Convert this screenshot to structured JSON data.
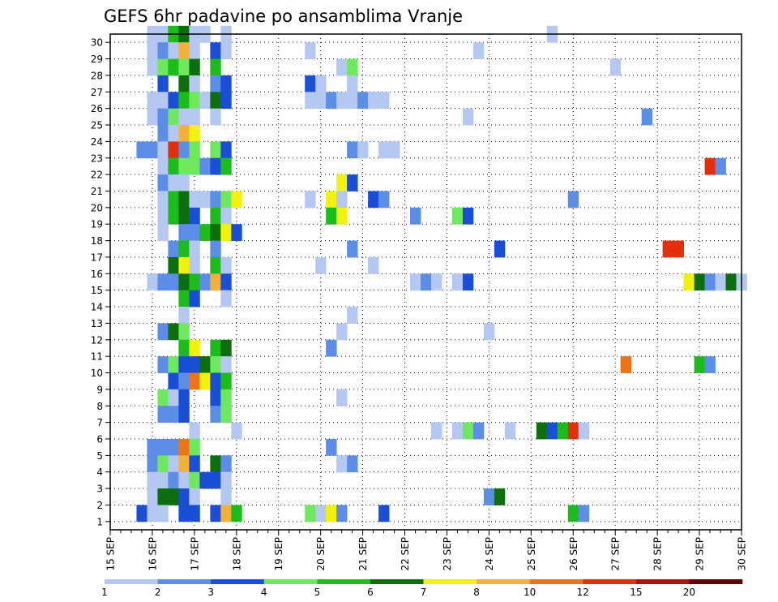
{
  "chart_data": {
    "type": "heatmap",
    "title": "GEFS 6hr padavine po ansamblima Vranje",
    "x_tick_labels": [
      "15 SEP",
      "16 SEP",
      "17 SEP",
      "18 SEP",
      "19 SEP",
      "20 SEP",
      "21 SEP",
      "22 SEP",
      "23 SEP",
      "24 SEP",
      "25 SEP",
      "26 SEP",
      "27 SEP",
      "28 SEP",
      "29 SEP",
      "30 SEP"
    ],
    "y_tick_labels": [
      "1",
      "2",
      "3",
      "4",
      "5",
      "6",
      "7",
      "8",
      "9",
      "10",
      "11",
      "12",
      "13",
      "14",
      "15",
      "16",
      "17",
      "18",
      "19",
      "20",
      "21",
      "22",
      "23",
      "24",
      "25",
      "26",
      "27",
      "28",
      "29",
      "30"
    ],
    "x_range_steps": [
      0,
      60
    ],
    "y_range": [
      0,
      30
    ],
    "grid": true,
    "colorbar": {
      "placement": "bottom",
      "labels": [
        "1",
        "2",
        "3",
        "4",
        "5",
        "6",
        "7",
        "8",
        "10",
        "12",
        "15",
        "20"
      ],
      "colors": [
        "#b5c8f2",
        "#5c8ee8",
        "#1a4ed6",
        "#6ee85c",
        "#1cbc1c",
        "#0c6e0c",
        "#f2f20c",
        "#f2b23a",
        "#ee7418",
        "#e2300c",
        "#b2120c",
        "#5c0606"
      ]
    },
    "cells": [
      [
        4,
        30,
        0
      ],
      [
        5,
        30,
        0
      ],
      [
        6,
        30,
        4
      ],
      [
        7,
        30,
        5
      ],
      [
        8,
        30,
        0
      ],
      [
        9,
        30,
        0
      ],
      [
        11,
        30,
        0
      ],
      [
        42,
        30,
        0
      ],
      [
        4,
        29,
        0
      ],
      [
        5,
        29,
        1
      ],
      [
        6,
        29,
        0
      ],
      [
        7,
        29,
        7
      ],
      [
        8,
        29,
        0
      ],
      [
        10,
        29,
        2
      ],
      [
        11,
        29,
        0
      ],
      [
        19,
        29,
        0
      ],
      [
        35,
        29,
        0
      ],
      [
        4,
        28,
        0
      ],
      [
        5,
        28,
        3
      ],
      [
        6,
        28,
        4
      ],
      [
        7,
        28,
        3
      ],
      [
        8,
        28,
        5
      ],
      [
        10,
        28,
        4
      ],
      [
        22,
        28,
        0
      ],
      [
        23,
        28,
        3
      ],
      [
        48,
        28,
        0
      ],
      [
        5,
        27,
        2
      ],
      [
        7,
        27,
        5
      ],
      [
        8,
        27,
        0
      ],
      [
        10,
        27,
        1
      ],
      [
        11,
        27,
        2
      ],
      [
        19,
        27,
        2
      ],
      [
        20,
        27,
        0
      ],
      [
        23,
        27,
        0
      ],
      [
        4,
        26,
        0
      ],
      [
        5,
        26,
        0
      ],
      [
        6,
        26,
        2
      ],
      [
        7,
        26,
        4
      ],
      [
        8,
        26,
        3
      ],
      [
        9,
        26,
        0
      ],
      [
        10,
        26,
        5
      ],
      [
        11,
        26,
        2
      ],
      [
        19,
        26,
        0
      ],
      [
        20,
        26,
        0
      ],
      [
        21,
        26,
        1
      ],
      [
        22,
        26,
        0
      ],
      [
        23,
        26,
        0
      ],
      [
        24,
        26,
        1
      ],
      [
        25,
        26,
        0
      ],
      [
        26,
        26,
        0
      ],
      [
        4,
        25,
        0
      ],
      [
        5,
        25,
        1
      ],
      [
        6,
        25,
        3
      ],
      [
        7,
        25,
        0
      ],
      [
        8,
        25,
        0
      ],
      [
        10,
        25,
        0
      ],
      [
        34,
        25,
        0
      ],
      [
        51,
        25,
        1
      ],
      [
        5,
        24,
        1
      ],
      [
        6,
        24,
        0
      ],
      [
        7,
        24,
        7
      ],
      [
        8,
        24,
        6
      ],
      [
        3,
        23,
        1
      ],
      [
        4,
        23,
        1
      ],
      [
        5,
        23,
        0
      ],
      [
        6,
        23,
        9
      ],
      [
        7,
        23,
        1
      ],
      [
        8,
        23,
        3
      ],
      [
        10,
        23,
        3
      ],
      [
        11,
        23,
        2
      ],
      [
        23,
        23,
        1
      ],
      [
        24,
        23,
        0
      ],
      [
        26,
        23,
        0
      ],
      [
        27,
        23,
        0
      ],
      [
        5,
        22,
        0
      ],
      [
        6,
        22,
        4
      ],
      [
        7,
        22,
        3
      ],
      [
        8,
        22,
        3
      ],
      [
        9,
        22,
        1
      ],
      [
        10,
        22,
        2
      ],
      [
        11,
        22,
        4
      ],
      [
        57,
        22,
        9
      ],
      [
        58,
        22,
        1
      ],
      [
        5,
        21,
        1
      ],
      [
        6,
        21,
        0
      ],
      [
        7,
        21,
        0
      ],
      [
        22,
        21,
        6
      ],
      [
        23,
        21,
        2
      ],
      [
        5,
        20,
        0
      ],
      [
        6,
        20,
        4
      ],
      [
        7,
        20,
        5
      ],
      [
        8,
        20,
        0
      ],
      [
        9,
        20,
        0
      ],
      [
        10,
        20,
        1
      ],
      [
        11,
        20,
        3
      ],
      [
        12,
        20,
        6
      ],
      [
        19,
        20,
        0
      ],
      [
        21,
        20,
        6
      ],
      [
        22,
        20,
        0
      ],
      [
        25,
        20,
        2
      ],
      [
        26,
        20,
        1
      ],
      [
        44,
        20,
        1
      ],
      [
        5,
        19,
        0
      ],
      [
        6,
        19,
        4
      ],
      [
        7,
        19,
        5
      ],
      [
        8,
        19,
        2
      ],
      [
        10,
        19,
        4
      ],
      [
        11,
        19,
        0
      ],
      [
        21,
        19,
        4
      ],
      [
        22,
        19,
        6
      ],
      [
        29,
        19,
        1
      ],
      [
        33,
        19,
        3
      ],
      [
        34,
        19,
        2
      ],
      [
        5,
        18,
        0
      ],
      [
        7,
        18,
        1
      ],
      [
        8,
        18,
        1
      ],
      [
        9,
        18,
        4
      ],
      [
        10,
        18,
        5
      ],
      [
        11,
        18,
        6
      ],
      [
        12,
        18,
        2
      ],
      [
        6,
        17,
        1
      ],
      [
        7,
        17,
        4
      ],
      [
        8,
        17,
        0
      ],
      [
        10,
        17,
        1
      ],
      [
        23,
        17,
        1
      ],
      [
        37,
        17,
        2
      ],
      [
        53,
        17,
        9
      ],
      [
        54,
        17,
        9
      ],
      [
        6,
        16,
        5
      ],
      [
        7,
        16,
        6
      ],
      [
        8,
        16,
        0
      ],
      [
        10,
        16,
        4
      ],
      [
        11,
        16,
        0
      ],
      [
        20,
        16,
        0
      ],
      [
        25,
        16,
        0
      ],
      [
        4,
        15,
        0
      ],
      [
        5,
        15,
        1
      ],
      [
        6,
        15,
        1
      ],
      [
        7,
        15,
        5
      ],
      [
        8,
        15,
        4
      ],
      [
        9,
        15,
        1
      ],
      [
        10,
        15,
        7
      ],
      [
        11,
        15,
        2
      ],
      [
        29,
        15,
        0
      ],
      [
        30,
        15,
        1
      ],
      [
        31,
        15,
        0
      ],
      [
        33,
        15,
        0
      ],
      [
        34,
        15,
        2
      ],
      [
        55,
        15,
        6
      ],
      [
        56,
        15,
        5
      ],
      [
        57,
        15,
        1
      ],
      [
        58,
        15,
        0
      ],
      [
        59,
        15,
        5
      ],
      [
        60,
        15,
        0
      ],
      [
        7,
        14,
        4
      ],
      [
        8,
        14,
        2
      ],
      [
        11,
        14,
        0
      ],
      [
        7,
        13,
        0
      ],
      [
        23,
        13,
        0
      ],
      [
        5,
        12,
        1
      ],
      [
        6,
        12,
        5
      ],
      [
        7,
        12,
        3
      ],
      [
        22,
        12,
        0
      ],
      [
        36,
        12,
        0
      ],
      [
        7,
        11,
        4
      ],
      [
        8,
        11,
        6
      ],
      [
        10,
        11,
        4
      ],
      [
        11,
        11,
        5
      ],
      [
        21,
        11,
        1
      ],
      [
        5,
        10,
        1
      ],
      [
        6,
        10,
        3
      ],
      [
        7,
        10,
        2
      ],
      [
        8,
        10,
        2
      ],
      [
        9,
        10,
        5
      ],
      [
        10,
        10,
        3
      ],
      [
        11,
        10,
        0
      ],
      [
        49,
        10,
        8
      ],
      [
        56,
        10,
        4
      ],
      [
        57,
        10,
        1
      ],
      [
        6,
        9,
        2
      ],
      [
        7,
        9,
        1
      ],
      [
        8,
        9,
        8
      ],
      [
        9,
        9,
        6
      ],
      [
        10,
        9,
        2
      ],
      [
        11,
        9,
        4
      ],
      [
        5,
        8,
        3
      ],
      [
        6,
        8,
        0
      ],
      [
        7,
        8,
        2
      ],
      [
        10,
        8,
        2
      ],
      [
        11,
        8,
        3
      ],
      [
        22,
        8,
        0
      ],
      [
        5,
        7,
        1
      ],
      [
        6,
        7,
        1
      ],
      [
        7,
        7,
        2
      ],
      [
        10,
        7,
        1
      ],
      [
        11,
        7,
        3
      ],
      [
        8,
        6,
        0
      ],
      [
        12,
        6,
        0
      ],
      [
        31,
        6,
        0
      ],
      [
        33,
        6,
        0
      ],
      [
        34,
        6,
        3
      ],
      [
        35,
        6,
        1
      ],
      [
        38,
        6,
        0
      ],
      [
        41,
        6,
        5
      ],
      [
        42,
        6,
        2
      ],
      [
        43,
        6,
        4
      ],
      [
        44,
        6,
        9
      ],
      [
        45,
        6,
        0
      ],
      [
        4,
        5,
        1
      ],
      [
        5,
        5,
        1
      ],
      [
        6,
        5,
        1
      ],
      [
        7,
        5,
        8
      ],
      [
        8,
        5,
        3
      ],
      [
        21,
        5,
        1
      ],
      [
        4,
        4,
        1
      ],
      [
        5,
        4,
        3
      ],
      [
        6,
        4,
        0
      ],
      [
        7,
        4,
        7
      ],
      [
        8,
        4,
        2
      ],
      [
        10,
        4,
        5
      ],
      [
        11,
        4,
        1
      ],
      [
        22,
        4,
        0
      ],
      [
        23,
        4,
        1
      ],
      [
        4,
        3,
        0
      ],
      [
        5,
        3,
        0
      ],
      [
        6,
        3,
        1
      ],
      [
        7,
        3,
        0
      ],
      [
        8,
        3,
        3
      ],
      [
        9,
        3,
        2
      ],
      [
        10,
        3,
        2
      ],
      [
        11,
        3,
        0
      ],
      [
        4,
        2,
        0
      ],
      [
        5,
        2,
        5
      ],
      [
        6,
        2,
        5
      ],
      [
        7,
        2,
        2
      ],
      [
        8,
        2,
        0
      ],
      [
        11,
        2,
        0
      ],
      [
        36,
        2,
        1
      ],
      [
        37,
        2,
        5
      ],
      [
        3,
        1,
        2
      ],
      [
        4,
        1,
        0
      ],
      [
        5,
        1,
        0
      ],
      [
        7,
        1,
        2
      ],
      [
        8,
        1,
        2
      ],
      [
        10,
        1,
        2
      ],
      [
        11,
        1,
        7
      ],
      [
        12,
        1,
        4
      ],
      [
        19,
        1,
        3
      ],
      [
        20,
        1,
        0
      ],
      [
        21,
        1,
        6
      ],
      [
        22,
        1,
        1
      ],
      [
        26,
        1,
        2
      ],
      [
        44,
        1,
        4
      ],
      [
        45,
        1,
        1
      ]
    ]
  }
}
